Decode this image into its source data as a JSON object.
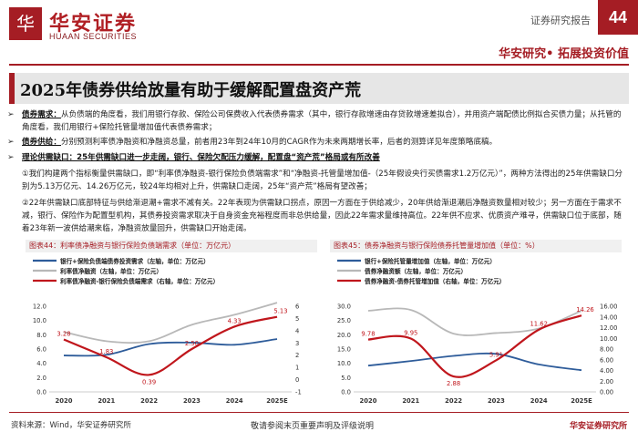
{
  "header": {
    "logo_glyph": "华",
    "logo_cn": "华安证券",
    "logo_en": "HUAAN SECURITIES",
    "report_type": "证券研究报告",
    "page_number": "44",
    "slogan": "华安研究• 拓展投资价值"
  },
  "title": "2025年债券供给放量有助于缓解配置盘资产荒",
  "bullets": [
    {
      "marker": "➢",
      "lead": "债券需求：",
      "text": "从负债端的角度看，我们用银行存款、保险公司保费收入代表债券需求（其中，银行存款增速由存贷款增速差拟合），并用资产端配债比例拟合买债力量；从托管的角度看，我们用银行+保险托管量增加值代表债券需求；"
    },
    {
      "marker": "➢",
      "lead": "债券供给：",
      "text": "分别预测利率债净融资和净融资总量，前者用23年到24年10月的CAGR作为未来两期增长率，后者的测算详见年度策略底稿。"
    },
    {
      "marker": "➢",
      "lead": "理论供需缺口：25年供需缺口进一步走阔，银行、保险欠配压力缓解，配置盘“资产荒”格局或有所改善",
      "text": ""
    },
    {
      "marker": "",
      "lead": "",
      "text": "①我们构建两个指标衡量供需缺口，即“利率债净融资-银行保险负债端需求”和“净融资-托管量增加值-（25年假设央行买债需求1.2万亿元）”，两种方法得出的25年供需缺口分别为5.13万亿元、14.26万亿元，较24年均相对上升，供需缺口走阔，25年“资产荒”格局有望改善；"
    },
    {
      "marker": "",
      "lead": "",
      "text": "②22年供需缺口底部特征与供给渐退潮+需求不减有关。22年表现为供需缺口拐点，原因一方面在于供给减少，20年供给渐退潮后净融资数量相对较少；另一方面在于需求不减，银行、保险作为配置型机构，其债券投资需求取决于自身资金充裕程度而非总供给量，因此22年需求量维持高位。22年供不应求、优质资产难寻，供需缺口位于底部，随着23年新一波供给潮来临，净融资放量回升，供需缺口开始走阔。"
    }
  ],
  "charts": [
    {
      "fig_title": "图表44：利率债净融资与银行保险负债端需求（单位：万亿元）",
      "legend": [
        {
          "label": "银行+保险负债端债券投资需求（左轴，单位：万亿元）",
          "color": "#2e5c9a"
        },
        {
          "label": "利率债净融资（左轴，单位：万亿元）",
          "color": "#b8b8b8"
        },
        {
          "label": "利率债净融资-银行保险负债端需求（右轴，单位：万亿元）",
          "color": "#c0161c"
        }
      ]
    },
    {
      "fig_title": "图表45：债券净融资与银行保险债券托管量增加值（单位：%）",
      "legend": [
        {
          "label": "银行+保险托管量增加值（左轴，单位：万亿元）",
          "color": "#2e5c9a"
        },
        {
          "label": "债券净融资额（左轴，单位：万亿元）",
          "color": "#b8b8b8"
        },
        {
          "label": "债券净融资-债券托管增加值（右轴，单位：万亿元）",
          "color": "#c0161c"
        }
      ]
    }
  ],
  "chart_data": [
    {
      "type": "line",
      "title": "利率债净融资与银行保险负债端需求（单位：万亿元）",
      "x": [
        "2020",
        "2021",
        "2022",
        "2023",
        "2024",
        "2025E"
      ],
      "left_ylim": [
        0,
        12
      ],
      "left_ticks": [
        "0.0",
        "2.0",
        "4.0",
        "6.0",
        "8.0",
        "10.0",
        "12.0"
      ],
      "right_ylim": [
        -1,
        6
      ],
      "right_ticks": [
        "-1",
        "0",
        "1",
        "2",
        "3",
        "4",
        "5",
        "6"
      ],
      "series": [
        {
          "name": "银行+保险负债端债券投资需求",
          "axis": "left",
          "values": [
            5.1,
            5.2,
            6.7,
            6.9,
            6.6,
            7.4
          ]
        },
        {
          "name": "利率债净融资",
          "axis": "left",
          "values": [
            8.4,
            7.1,
            7.1,
            9.4,
            10.8,
            12.5
          ]
        },
        {
          "name": "利率债净融资-银行保险负债端需求",
          "axis": "right",
          "values": [
            3.28,
            1.83,
            0.39,
            2.5,
            4.33,
            5.13
          ]
        }
      ],
      "data_labels": [
        "3.28",
        "1.83",
        "0.39",
        "2.50",
        "4.33",
        "5.13"
      ]
    },
    {
      "type": "line",
      "title": "债券净融资与银行保险债券托管量增加值",
      "x": [
        "2020",
        "2021",
        "2022",
        "2023",
        "2024",
        "2025E"
      ],
      "left_ylim": [
        0,
        30
      ],
      "left_ticks": [
        "0.0",
        "5.0",
        "10.0",
        "15.0",
        "20.0",
        "25.0",
        "30.0"
      ],
      "right_ylim": [
        0,
        16
      ],
      "right_ticks": [
        "0.00",
        "2.00",
        "4.00",
        "6.00",
        "8.00",
        "10.00",
        "12.00",
        "14.00",
        "16.00"
      ],
      "series": [
        {
          "name": "银行+保险托管量增加值",
          "axis": "left",
          "values": [
            9.2,
            10.8,
            12.6,
            13.3,
            9.6,
            7.6
          ]
        },
        {
          "name": "债券净融资额",
          "axis": "left",
          "values": [
            28.4,
            28.7,
            20.4,
            20.6,
            22.2,
            28.4
          ]
        },
        {
          "name": "债券净融资-债券托管增加值",
          "axis": "right",
          "values": [
            9.78,
            9.95,
            2.88,
            5.91,
            11.62,
            14.26
          ]
        }
      ],
      "data_labels": [
        "9.78",
        "9.95",
        "2.88",
        "5.91",
        "11.62",
        "14.26"
      ]
    }
  ],
  "footer": {
    "source": "资料来源：Wind，华安证券研究所",
    "disclaimer": "敬请参阅末页重要声明及评级说明",
    "right": "华安证券研究所"
  },
  "colors": {
    "brand": "#a51d24",
    "blue": "#2e5c9a",
    "gray": "#b8b8b8",
    "red": "#c0161c"
  }
}
